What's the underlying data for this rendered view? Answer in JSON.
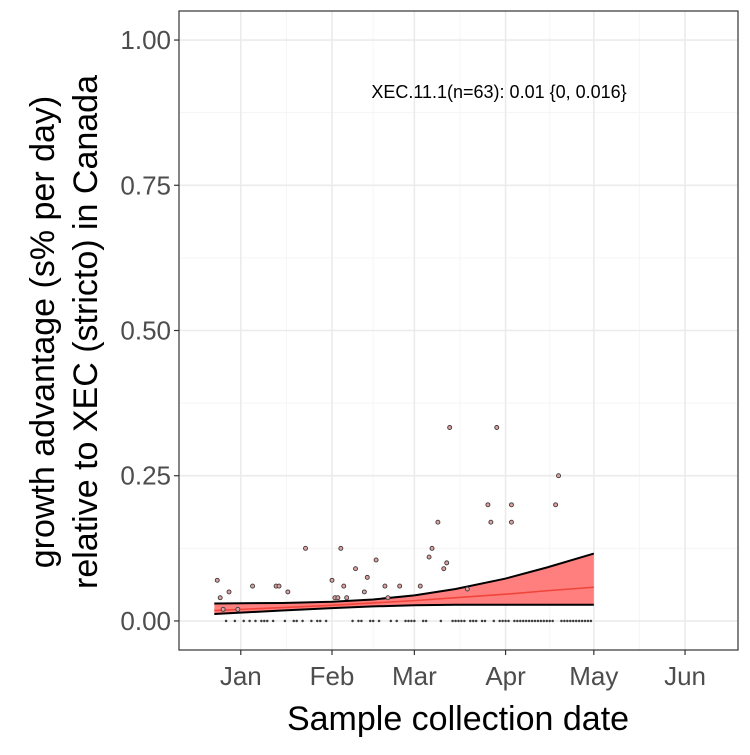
{
  "chart_data": {
    "type": "scatter",
    "title": "",
    "xlabel": "Sample collection date",
    "ylabel_line1": "growth advantage (s% per day)",
    "ylabel_line2": "relative to XEC (stricto) in Canada",
    "annotation": "XEC.11.1(n=63): 0.01 {0, 0.016}",
    "x_ticks": [
      {
        "label": "Jan",
        "date": "2025-01-01"
      },
      {
        "label": "Feb",
        "date": "2025-02-01"
      },
      {
        "label": "Mar",
        "date": "2025-03-01"
      },
      {
        "label": "Apr",
        "date": "2025-04-01"
      },
      {
        "label": "May",
        "date": "2025-05-01"
      },
      {
        "label": "Jun",
        "date": "2025-06-01"
      }
    ],
    "y_ticks": [
      {
        "label": "0.00",
        "value": 0.0
      },
      {
        "label": "0.25",
        "value": 0.25
      },
      {
        "label": "0.50",
        "value": 0.5
      },
      {
        "label": "0.75",
        "value": 0.75
      },
      {
        "label": "1.00",
        "value": 1.0
      }
    ],
    "xlim": [
      "2024-12-11",
      "2025-06-19"
    ],
    "ylim": [
      -0.05,
      1.05
    ],
    "grid": true,
    "colors": {
      "ribbon_fill": "#ff7f7f",
      "fit_line": "#f0453a",
      "ribbon_edge": "#000000",
      "point_fill": "#e0a0a0",
      "point_edge": "#3a3a3a",
      "grid_major": "#ebebeb",
      "grid_minor": "#f5f5f5",
      "panel_border": "#333333"
    },
    "fit": {
      "name": "XEC.11.1",
      "dates": [
        "2024-12-23",
        "2025-01-15",
        "2025-02-01",
        "2025-02-15",
        "2025-03-01",
        "2025-03-15",
        "2025-04-01",
        "2025-04-15",
        "2025-05-01"
      ],
      "mean": [
        0.018,
        0.023,
        0.027,
        0.031,
        0.035,
        0.04,
        0.046,
        0.052,
        0.058
      ],
      "lower": [
        0.012,
        0.018,
        0.022,
        0.025,
        0.027,
        0.028,
        0.028,
        0.028,
        0.028
      ],
      "upper": [
        0.03,
        0.031,
        0.033,
        0.037,
        0.044,
        0.055,
        0.073,
        0.092,
        0.116
      ]
    },
    "points": [
      {
        "date": "2024-12-24",
        "y": 0.07
      },
      {
        "date": "2024-12-25",
        "y": 0.04
      },
      {
        "date": "2024-12-26",
        "y": 0.02
      },
      {
        "date": "2024-12-27",
        "y": 0.0
      },
      {
        "date": "2024-12-28",
        "y": 0.05
      },
      {
        "date": "2024-12-30",
        "y": 0.0
      },
      {
        "date": "2024-12-31",
        "y": 0.02
      },
      {
        "date": "2025-01-02",
        "y": 0.0
      },
      {
        "date": "2025-01-04",
        "y": 0.0
      },
      {
        "date": "2025-01-05",
        "y": 0.06
      },
      {
        "date": "2025-01-06",
        "y": 0.0
      },
      {
        "date": "2025-01-08",
        "y": 0.0
      },
      {
        "date": "2025-01-09",
        "y": 0.0
      },
      {
        "date": "2025-01-10",
        "y": 0.0
      },
      {
        "date": "2025-01-12",
        "y": 0.0
      },
      {
        "date": "2025-01-13",
        "y": 0.06
      },
      {
        "date": "2025-01-14",
        "y": 0.06
      },
      {
        "date": "2025-01-16",
        "y": 0.0
      },
      {
        "date": "2025-01-17",
        "y": 0.05
      },
      {
        "date": "2025-01-19",
        "y": 0.0
      },
      {
        "date": "2025-01-20",
        "y": 0.0
      },
      {
        "date": "2025-01-22",
        "y": 0.0
      },
      {
        "date": "2025-01-23",
        "y": 0.125
      },
      {
        "date": "2025-01-25",
        "y": 0.0
      },
      {
        "date": "2025-01-27",
        "y": 0.0
      },
      {
        "date": "2025-01-28",
        "y": 0.0
      },
      {
        "date": "2025-01-30",
        "y": 0.0
      },
      {
        "date": "2025-02-01",
        "y": 0.07
      },
      {
        "date": "2025-02-02",
        "y": 0.04
      },
      {
        "date": "2025-02-03",
        "y": 0.04
      },
      {
        "date": "2025-02-04",
        "y": 0.125
      },
      {
        "date": "2025-02-05",
        "y": 0.06
      },
      {
        "date": "2025-02-06",
        "y": 0.04
      },
      {
        "date": "2025-02-08",
        "y": 0.0
      },
      {
        "date": "2025-02-09",
        "y": 0.09
      },
      {
        "date": "2025-02-10",
        "y": 0.0
      },
      {
        "date": "2025-02-11",
        "y": 0.0
      },
      {
        "date": "2025-02-12",
        "y": 0.05
      },
      {
        "date": "2025-02-13",
        "y": 0.075
      },
      {
        "date": "2025-02-14",
        "y": 0.0
      },
      {
        "date": "2025-02-15",
        "y": 0.0
      },
      {
        "date": "2025-02-16",
        "y": 0.105
      },
      {
        "date": "2025-02-17",
        "y": 0.0
      },
      {
        "date": "2025-02-19",
        "y": 0.06
      },
      {
        "date": "2025-02-20",
        "y": 0.04
      },
      {
        "date": "2025-02-21",
        "y": 0.0
      },
      {
        "date": "2025-02-23",
        "y": 0.0
      },
      {
        "date": "2025-02-24",
        "y": 0.06
      },
      {
        "date": "2025-02-26",
        "y": 0.0
      },
      {
        "date": "2025-02-27",
        "y": 0.0
      },
      {
        "date": "2025-02-28",
        "y": 0.0
      },
      {
        "date": "2025-03-01",
        "y": 0.0
      },
      {
        "date": "2025-03-03",
        "y": 0.06
      },
      {
        "date": "2025-03-04",
        "y": 0.0
      },
      {
        "date": "2025-03-05",
        "y": 0.0
      },
      {
        "date": "2025-03-06",
        "y": 0.11
      },
      {
        "date": "2025-03-07",
        "y": 0.125
      },
      {
        "date": "2025-03-09",
        "y": 0.17
      },
      {
        "date": "2025-03-10",
        "y": 0.0
      },
      {
        "date": "2025-03-11",
        "y": 0.09
      },
      {
        "date": "2025-03-12",
        "y": 0.1
      },
      {
        "date": "2025-03-13",
        "y": 0.333
      },
      {
        "date": "2025-03-14",
        "y": 0.0
      },
      {
        "date": "2025-03-15",
        "y": 0.0
      },
      {
        "date": "2025-03-16",
        "y": 0.0
      },
      {
        "date": "2025-03-17",
        "y": 0.0
      },
      {
        "date": "2025-03-18",
        "y": 0.0
      },
      {
        "date": "2025-03-19",
        "y": 0.055
      },
      {
        "date": "2025-03-20",
        "y": 0.0
      },
      {
        "date": "2025-03-21",
        "y": 0.0
      },
      {
        "date": "2025-03-22",
        "y": 0.0
      },
      {
        "date": "2025-03-24",
        "y": 0.0
      },
      {
        "date": "2025-03-25",
        "y": 0.0
      },
      {
        "date": "2025-03-26",
        "y": 0.2
      },
      {
        "date": "2025-03-27",
        "y": 0.17
      },
      {
        "date": "2025-03-28",
        "y": 0.0
      },
      {
        "date": "2025-03-29",
        "y": 0.333
      },
      {
        "date": "2025-03-30",
        "y": 0.0
      },
      {
        "date": "2025-03-31",
        "y": 0.0
      },
      {
        "date": "2025-04-01",
        "y": 0.0
      },
      {
        "date": "2025-04-02",
        "y": 0.0
      },
      {
        "date": "2025-04-03",
        "y": 0.17
      },
      {
        "date": "2025-04-03",
        "y": 0.2
      },
      {
        "date": "2025-04-04",
        "y": 0.0
      },
      {
        "date": "2025-04-05",
        "y": 0.0
      },
      {
        "date": "2025-04-06",
        "y": 0.0
      },
      {
        "date": "2025-04-07",
        "y": 0.0
      },
      {
        "date": "2025-04-08",
        "y": 0.0
      },
      {
        "date": "2025-04-09",
        "y": 0.0
      },
      {
        "date": "2025-04-10",
        "y": 0.0
      },
      {
        "date": "2025-04-11",
        "y": 0.0
      },
      {
        "date": "2025-04-12",
        "y": 0.0
      },
      {
        "date": "2025-04-13",
        "y": 0.0
      },
      {
        "date": "2025-04-14",
        "y": 0.0
      },
      {
        "date": "2025-04-15",
        "y": 0.0
      },
      {
        "date": "2025-04-16",
        "y": 0.0
      },
      {
        "date": "2025-04-17",
        "y": 0.0
      },
      {
        "date": "2025-04-18",
        "y": 0.2
      },
      {
        "date": "2025-04-19",
        "y": 0.25
      },
      {
        "date": "2025-04-20",
        "y": 0.0
      },
      {
        "date": "2025-04-21",
        "y": 0.0
      },
      {
        "date": "2025-04-22",
        "y": 0.0
      },
      {
        "date": "2025-04-23",
        "y": 0.0
      },
      {
        "date": "2025-04-24",
        "y": 0.0
      },
      {
        "date": "2025-04-25",
        "y": 0.0
      },
      {
        "date": "2025-04-26",
        "y": 0.0
      },
      {
        "date": "2025-04-27",
        "y": 0.0
      },
      {
        "date": "2025-04-28",
        "y": 0.0
      },
      {
        "date": "2025-04-29",
        "y": 0.0
      },
      {
        "date": "2025-04-30",
        "y": 0.0
      }
    ]
  }
}
